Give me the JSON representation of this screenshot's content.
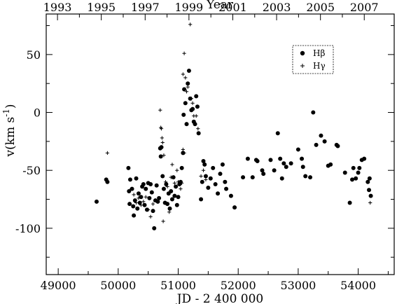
{
  "chart_data": {
    "type": "scatter",
    "title": "",
    "xlabel": "JD - 2 400 000",
    "ylabel": "v(km s",
    "ylabel_superscript": "-1",
    "ylabel_close": ")",
    "top_axis_label": "Year",
    "xlim": [
      48800,
      54600
    ],
    "ylim": [
      -140,
      85
    ],
    "x_ticks": [
      49000,
      50000,
      51000,
      52000,
      53000,
      54000
    ],
    "y_ticks": [
      -100,
      -50,
      0,
      50
    ],
    "top_ticks": [
      {
        "label": "1993",
        "jd": 48988
      },
      {
        "label": "1995",
        "jd": 49718
      },
      {
        "label": "1997",
        "jd": 50449
      },
      {
        "label": "1999",
        "jd": 51179
      },
      {
        "label": "2001",
        "jd": 51910
      },
      {
        "label": "2003",
        "jd": 52640
      },
      {
        "label": "2005",
        "jd": 53371
      },
      {
        "label": "2007",
        "jd": 54101
      }
    ],
    "legend": {
      "position": "top-right",
      "entries": [
        "Hβ",
        "Hγ"
      ]
    },
    "series": [
      {
        "name": "Hβ",
        "marker": "dot",
        "points": [
          [
            49640,
            -77
          ],
          [
            49800,
            -58
          ],
          [
            49820,
            -60
          ],
          [
            50170,
            -48
          ],
          [
            50180,
            -68
          ],
          [
            50190,
            -79
          ],
          [
            50200,
            -58
          ],
          [
            50230,
            -66
          ],
          [
            50250,
            -81
          ],
          [
            50260,
            -89
          ],
          [
            50280,
            -76
          ],
          [
            50300,
            -57
          ],
          [
            50320,
            -83
          ],
          [
            50340,
            -70
          ],
          [
            50360,
            -78
          ],
          [
            50380,
            -73
          ],
          [
            50400,
            -64
          ],
          [
            50420,
            -62
          ],
          [
            50440,
            -80
          ],
          [
            50460,
            -66
          ],
          [
            50480,
            -84
          ],
          [
            50500,
            -61
          ],
          [
            50520,
            -74
          ],
          [
            50540,
            -62
          ],
          [
            50560,
            -69
          ],
          [
            50580,
            -85
          ],
          [
            50600,
            -100
          ],
          [
            50620,
            -76
          ],
          [
            50640,
            -63
          ],
          [
            50660,
            -77
          ],
          [
            50680,
            -74
          ],
          [
            50700,
            -31
          ],
          [
            50710,
            -38
          ],
          [
            50720,
            -30
          ],
          [
            50740,
            -55
          ],
          [
            50760,
            -66
          ],
          [
            50780,
            -78
          ],
          [
            50800,
            -62
          ],
          [
            50820,
            -79
          ],
          [
            50840,
            -70
          ],
          [
            50860,
            -83
          ],
          [
            50880,
            -68
          ],
          [
            50900,
            -75
          ],
          [
            50920,
            -56
          ],
          [
            50940,
            -72
          ],
          [
            50960,
            -64
          ],
          [
            50980,
            -80
          ],
          [
            51000,
            -73
          ],
          [
            51020,
            -62
          ],
          [
            51040,
            -60
          ],
          [
            51060,
            -48
          ],
          [
            51080,
            -35
          ],
          [
            51090,
            -2
          ],
          [
            51100,
            20
          ],
          [
            51120,
            8
          ],
          [
            51140,
            -10
          ],
          [
            51160,
            25
          ],
          [
            51180,
            36
          ],
          [
            51200,
            12
          ],
          [
            51220,
            2
          ],
          [
            51240,
            3
          ],
          [
            51260,
            -8
          ],
          [
            51280,
            -10
          ],
          [
            51300,
            14
          ],
          [
            51320,
            5
          ],
          [
            51340,
            -18
          ],
          [
            51380,
            -75
          ],
          [
            51400,
            -60
          ],
          [
            51420,
            -42
          ],
          [
            51440,
            -45
          ],
          [
            51460,
            -55
          ],
          [
            51500,
            -65
          ],
          [
            51540,
            -57
          ],
          [
            51580,
            -48
          ],
          [
            51620,
            -62
          ],
          [
            51660,
            -70
          ],
          [
            51700,
            -53
          ],
          [
            51740,
            -45
          ],
          [
            51780,
            -60
          ],
          [
            51800,
            -66
          ],
          [
            51880,
            -72
          ],
          [
            51940,
            -82
          ],
          [
            52080,
            -56
          ],
          [
            52160,
            -40
          ],
          [
            52240,
            -56
          ],
          [
            52300,
            -41
          ],
          [
            52320,
            -42
          ],
          [
            52400,
            -50
          ],
          [
            52420,
            -53
          ],
          [
            52540,
            -41
          ],
          [
            52600,
            -50
          ],
          [
            52660,
            -18
          ],
          [
            52700,
            -40
          ],
          [
            52730,
            -57
          ],
          [
            52760,
            -44
          ],
          [
            52800,
            -47
          ],
          [
            52880,
            -44
          ],
          [
            53000,
            -32
          ],
          [
            53060,
            -40
          ],
          [
            53080,
            -47
          ],
          [
            53120,
            -55
          ],
          [
            53200,
            -56
          ],
          [
            53250,
            0
          ],
          [
            53300,
            -28
          ],
          [
            53380,
            -20
          ],
          [
            53440,
            -25
          ],
          [
            53500,
            -46
          ],
          [
            53540,
            -45
          ],
          [
            53640,
            -28
          ],
          [
            53660,
            -29
          ],
          [
            53780,
            -52
          ],
          [
            53860,
            -78
          ],
          [
            53900,
            -58
          ],
          [
            53920,
            -48
          ],
          [
            53960,
            -57
          ],
          [
            54000,
            -52
          ],
          [
            54020,
            -48
          ],
          [
            54060,
            -41
          ],
          [
            54100,
            -40
          ],
          [
            54160,
            -60
          ],
          [
            54180,
            -67
          ],
          [
            54190,
            -57
          ],
          [
            54210,
            -72
          ]
        ]
      },
      {
        "name": "Hγ",
        "marker": "plus",
        "points": [
          [
            49820,
            -35
          ],
          [
            50220,
            -66
          ],
          [
            50260,
            -71
          ],
          [
            50300,
            -78
          ],
          [
            50340,
            -74
          ],
          [
            50380,
            -80
          ],
          [
            50420,
            -77
          ],
          [
            50460,
            -73
          ],
          [
            50500,
            -84
          ],
          [
            50540,
            -90
          ],
          [
            50580,
            -79
          ],
          [
            50700,
            2
          ],
          [
            50710,
            -13
          ],
          [
            50720,
            -14
          ],
          [
            50730,
            -22
          ],
          [
            50740,
            -26
          ],
          [
            50760,
            -37
          ],
          [
            50790,
            -60
          ],
          [
            50820,
            -64
          ],
          [
            50850,
            -86
          ],
          [
            50880,
            -56
          ],
          [
            50900,
            -45
          ],
          [
            50940,
            -61
          ],
          [
            50980,
            -50
          ],
          [
            51000,
            -60
          ],
          [
            51040,
            -66
          ],
          [
            51060,
            -61
          ],
          [
            51080,
            -32
          ],
          [
            51100,
            -35
          ],
          [
            51080,
            33
          ],
          [
            51100,
            51
          ],
          [
            51120,
            30
          ],
          [
            51140,
            18
          ],
          [
            51160,
            22
          ],
          [
            51200,
            76
          ],
          [
            51220,
            12
          ],
          [
            51240,
            8
          ],
          [
            51260,
            -3
          ],
          [
            51300,
            -3
          ],
          [
            51330,
            -14
          ],
          [
            50750,
            -94
          ],
          [
            51380,
            -55
          ],
          [
            51420,
            -50
          ],
          [
            51460,
            -58
          ],
          [
            54200,
            -78
          ]
        ]
      }
    ]
  }
}
